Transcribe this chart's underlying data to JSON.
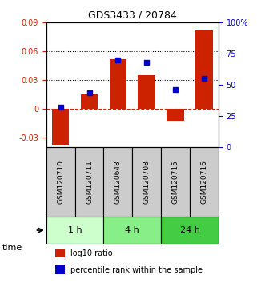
{
  "title": "GDS3433 / 20784",
  "samples": [
    "GSM120710",
    "GSM120711",
    "GSM120648",
    "GSM120708",
    "GSM120715",
    "GSM120716"
  ],
  "log10_ratio": [
    -0.038,
    0.015,
    0.052,
    0.035,
    -0.012,
    0.082
  ],
  "percentile_rank": [
    32,
    44,
    70,
    68,
    46,
    55
  ],
  "ylim_left": [
    -0.04,
    0.09
  ],
  "ylim_right": [
    0,
    100
  ],
  "yticks_left": [
    -0.03,
    0,
    0.03,
    0.06,
    0.09
  ],
  "yticks_right": [
    0,
    25,
    50,
    75,
    100
  ],
  "ytick_labels_left": [
    "-0.03",
    "0",
    "0.03",
    "0.06",
    "0.09"
  ],
  "ytick_labels_right": [
    "0",
    "25",
    "50",
    "75",
    "100%"
  ],
  "hlines_dotted": [
    0.03,
    0.06
  ],
  "hline_dashed": 0,
  "bar_color": "#CC2200",
  "dot_color": "#0000CC",
  "groups": [
    {
      "label": "1 h",
      "samples": [
        0,
        1
      ],
      "color": "#CCFFCC"
    },
    {
      "label": "4 h",
      "samples": [
        2,
        3
      ],
      "color": "#88EE88"
    },
    {
      "label": "24 h",
      "samples": [
        4,
        5
      ],
      "color": "#44CC44"
    }
  ],
  "time_label": "time",
  "legend_bar_label": "log10 ratio",
  "legend_dot_label": "percentile rank within the sample",
  "sample_box_color": "#CCCCCC",
  "bar_width": 0.6
}
